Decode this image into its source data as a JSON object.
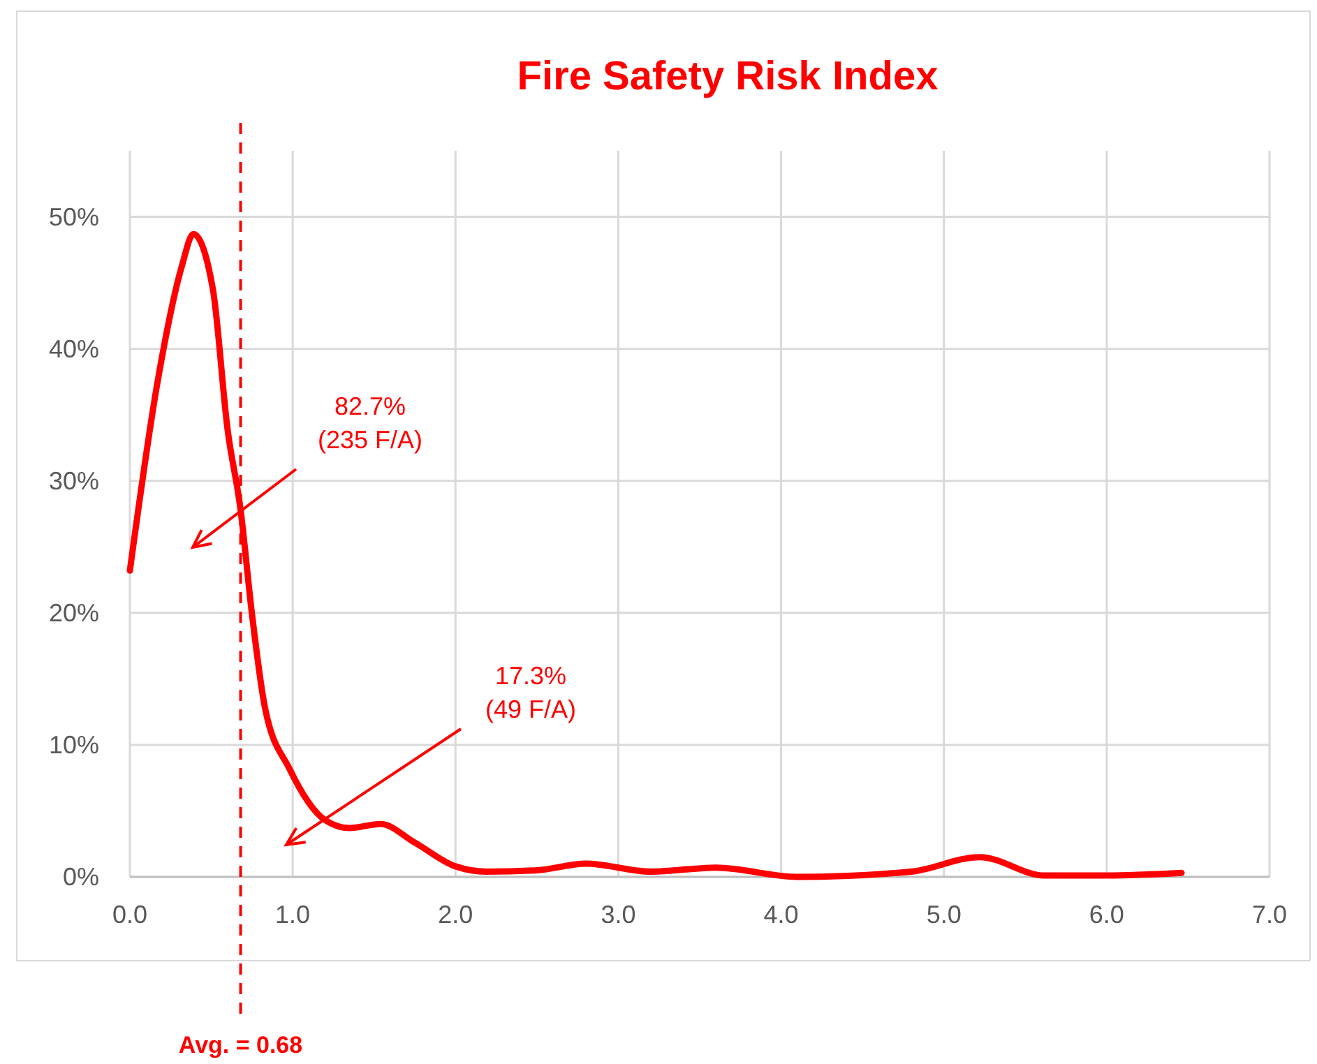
{
  "chart_data": {
    "type": "line",
    "title": "Fire Safety Risk Index",
    "x": [
      0,
      0.17,
      0.32,
      0.39,
      0.51,
      0.6,
      0.68,
      0.75,
      0.83,
      0.98,
      1.2,
      1.35,
      1.54,
      1.75,
      2.0,
      2.19,
      2.5,
      2.8,
      3.2,
      3.6,
      4.1,
      4.8,
      5.22,
      5.62,
      6.0,
      6.46
    ],
    "series": [
      {
        "color": "#ff0000",
        "values": [
          23.2,
          37.5,
          46.3,
          48.7,
          44.5,
          33.9,
          27.8,
          19.9,
          12.8,
          8.2,
          4.3,
          3.7,
          4.0,
          2.6,
          0.8,
          0.4,
          0.5,
          1.0,
          0.4,
          0.7,
          0,
          0.4,
          1.5,
          0.1,
          0.1,
          0.3
        ]
      }
    ],
    "xlim": [
      0,
      7
    ],
    "xticks": [
      {
        "value": 0,
        "label": "0.0"
      },
      {
        "value": 1,
        "label": "1.0"
      },
      {
        "value": 2,
        "label": "2.0"
      },
      {
        "value": 3,
        "label": "3.0"
      },
      {
        "value": 4,
        "label": "4.0"
      },
      {
        "value": 5,
        "label": "5.0"
      },
      {
        "value": 6,
        "label": "6.0"
      },
      {
        "value": 7,
        "label": "7.0"
      }
    ],
    "ylim": [
      0,
      55
    ],
    "yticks": [
      {
        "value": 0,
        "label": "0%"
      },
      {
        "value": 10,
        "label": "10%"
      },
      {
        "value": 20,
        "label": "20%"
      },
      {
        "value": 30,
        "label": "30%"
      },
      {
        "value": 40,
        "label": "40%"
      },
      {
        "value": 50,
        "label": "50%"
      }
    ],
    "grid": true,
    "marker": "none",
    "line_style": "solid",
    "ref_lines": [
      {
        "axis": "x",
        "value": 0.68,
        "label": "Avg. = 0.68",
        "color": "#ff0000",
        "line_style": "dashed"
      }
    ],
    "annotations": [
      "82.7%\n(235 F/A)",
      "17.3%\n(49 F/A)"
    ]
  }
}
